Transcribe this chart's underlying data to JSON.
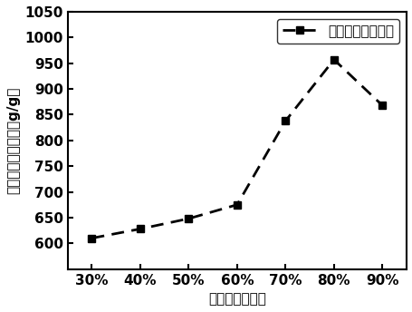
{
  "x_labels": [
    "30%",
    "40%",
    "50%",
    "60%",
    "70%",
    "80%",
    "90%"
  ],
  "x_values": [
    30,
    40,
    50,
    60,
    70,
    80,
    90
  ],
  "y_values": [
    610,
    628,
    648,
    675,
    838,
    957,
    868
  ],
  "ylim": [
    550,
    1050
  ],
  "yticks": [
    600,
    650,
    700,
    750,
    800,
    850,
    900,
    950,
    1000,
    1050
  ],
  "xlabel": "丙烯酸的中和度",
  "ylabel": "高吸水树脂吸水量（g/g）",
  "legend_label": "高吸水树脂吸水量",
  "line_color": "#000000",
  "marker": "s",
  "marker_size": 6,
  "line_width": 2.0,
  "bg_color": "#ffffff",
  "label_fontsize": 11,
  "tick_fontsize": 11,
  "legend_fontsize": 11,
  "xlim": [
    25,
    95
  ]
}
